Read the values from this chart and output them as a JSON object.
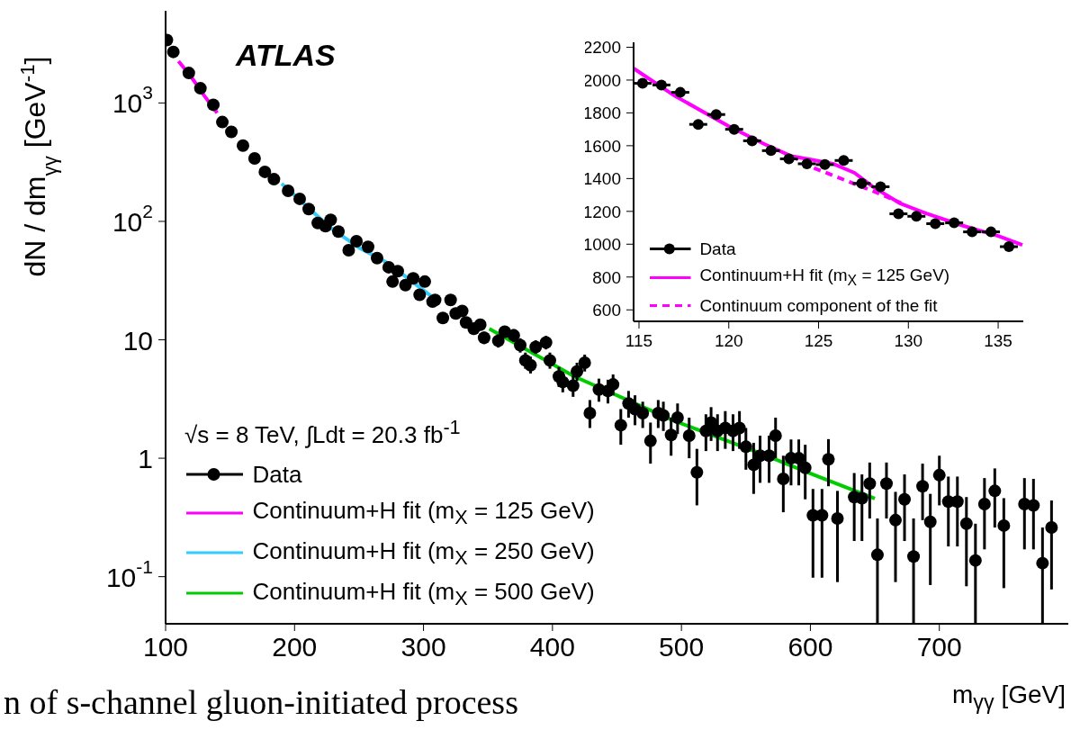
{
  "chart_data": [
    {
      "type": "scatter",
      "xlabel": "m$_{γγ}$ [GeV]",
      "ylabel": "dN / dm$_{γγ}$ [GeV$^{-1}$]",
      "annotations": [
        "ATLAS",
        "√s = 8 TeV, ∫Ldt = 20.3 fb$^{-1}$",
        "n of s-channel gluon-initiated process"
      ],
      "log": "y",
      "xlim": [
        100,
        800
      ],
      "ylim": [
        0.04,
        6000
      ],
      "xticks": [
        100,
        200,
        300,
        400,
        500,
        600,
        700
      ],
      "yticks": [
        {
          "value": 0.1,
          "label": "10$^{-1}$"
        },
        1,
        10,
        {
          "value": 100,
          "label": "10$^{2}$"
        },
        {
          "value": 1000,
          "label": "10$^{3}$"
        }
      ],
      "legend": "bottom left",
      "series": [
        {
          "name": "Data",
          "marker": "circle",
          "color": "#000000",
          "x": [
            101,
            106,
            118,
            127,
            137,
            144,
            151,
            160,
            169,
            177,
            184,
            195,
            204,
            211,
            218,
            224,
            228,
            234,
            242,
            248,
            257,
            264,
            273,
            276,
            280,
            286,
            292,
            297,
            301,
            307,
            309,
            315,
            321,
            325,
            330,
            333,
            339,
            344,
            347,
            358,
            363,
            370,
            375,
            379,
            383,
            387,
            395,
            398,
            405,
            408,
            416,
            419,
            425,
            429,
            436,
            443,
            447,
            453,
            459,
            464,
            470,
            476,
            482,
            486,
            492,
            497,
            506,
            512,
            519,
            523,
            528,
            534,
            540,
            545,
            550,
            556,
            561,
            568,
            573,
            579,
            585,
            591,
            596,
            602,
            609,
            614,
            621,
            634,
            640,
            646,
            652,
            659,
            666,
            673,
            680,
            687,
            693,
            700,
            707,
            714,
            721,
            728,
            735,
            743,
            750,
            766,
            773,
            780,
            787
          ],
          "values": [
            3400,
            2700,
            1790,
            1330,
            965,
            690,
            570,
            437,
            340,
            262,
            227,
            181,
            155,
            127,
            97,
            91,
            103,
            82,
            57,
            68,
            61,
            49,
            41,
            31,
            38,
            29,
            33,
            24,
            31,
            21,
            21.7,
            15.3,
            21.7,
            16.7,
            17.5,
            14,
            12.4,
            13.4,
            10.4,
            9.8,
            11.7,
            10.9,
            9.0,
            6.7,
            6.1,
            8.7,
            9.5,
            6.7,
            4.9,
            4.4,
            4.1,
            5.4,
            6.4,
            2.4,
            3.8,
            3.7,
            4.2,
            1.9,
            2.9,
            2.6,
            2.4,
            1.4,
            2.4,
            2.3,
            1.57,
            2.2,
            1.55,
            0.76,
            1.7,
            2.0,
            1.7,
            1.8,
            1.7,
            1.8,
            1.25,
            0.88,
            1.05,
            1.05,
            1.55,
            0.67,
            1.0,
            1.0,
            0.83,
            0.33,
            0.33,
            0.98,
            0.31,
            0.47,
            0.46,
            0.61,
            0.153,
            0.61,
            0.3,
            0.45,
            0.148,
            0.58,
            0.29,
            0.72,
            0.43,
            0.43,
            0.28,
            0.137,
            0.41,
            0.53,
            0.27,
            0.41,
            0.4,
            0.13,
            0.26
          ],
          "errors": [
            null,
            null,
            null,
            null,
            null,
            null,
            null,
            null,
            null,
            null,
            null,
            null,
            null,
            null,
            null,
            null,
            null,
            null,
            null,
            null,
            null,
            null,
            null,
            null,
            null,
            null,
            null,
            null,
            null,
            null,
            null,
            null,
            null,
            null,
            null,
            null,
            [
              11,
              14
            ],
            [
              12,
              15
            ],
            [
              9.2,
              11.7
            ],
            [
              8.6,
              11.1
            ],
            [
              10.4,
              13.1
            ],
            [
              9.6,
              12.3
            ],
            [
              7.8,
              10.3
            ],
            [
              5.7,
              7.8
            ],
            [
              5.2,
              7.2
            ],
            [
              7.6,
              9.9
            ],
            [
              8.3,
              10.8
            ],
            [
              5.7,
              7.8
            ],
            [
              4.0,
              5.9
            ],
            [
              3.6,
              5.3
            ],
            [
              3.3,
              5.0
            ],
            [
              4.5,
              6.4
            ],
            [
              5.4,
              7.5
            ],
            [
              1.8,
              3.1
            ],
            [
              3.0,
              4.7
            ],
            [
              2.9,
              4.6
            ],
            [
              3.4,
              5.1
            ],
            [
              1.3,
              2.6
            ],
            [
              2.2,
              3.7
            ],
            [
              1.9,
              3.4
            ],
            [
              1.8,
              3.0
            ],
            [
              0.9,
              2.0
            ],
            [
              1.8,
              3.1
            ],
            [
              1.7,
              3.0
            ],
            [
              1.05,
              2.2
            ],
            [
              1.6,
              2.9
            ],
            [
              1.0,
              2.2
            ],
            [
              0.4,
              1.2
            ],
            [
              1.15,
              2.35
            ],
            [
              1.4,
              2.7
            ],
            [
              1.15,
              2.35
            ],
            [
              1.2,
              2.5
            ],
            [
              1.15,
              2.35
            ],
            [
              1.2,
              2.5
            ],
            [
              0.8,
              1.8
            ],
            [
              0.5,
              1.35
            ],
            [
              0.62,
              1.55
            ],
            [
              0.62,
              1.55
            ],
            [
              1.0,
              2.2
            ],
            [
              0.35,
              1.05
            ],
            [
              0.59,
              1.44
            ],
            [
              0.59,
              1.44
            ],
            [
              0.45,
              1.3
            ],
            [
              0.098,
              0.55
            ],
            [
              0.098,
              0.55
            ],
            [
              0.58,
              1.45
            ],
            [
              0.09,
              0.53
            ],
            [
              0.2,
              0.75
            ],
            [
              0.2,
              0.73
            ],
            [
              0.31,
              0.92
            ],
            [
              0.04,
              0.31
            ],
            [
              0.31,
              0.92
            ],
            [
              0.09,
              0.52
            ],
            [
              0.2,
              0.73
            ],
            [
              0.04,
              0.31
            ],
            [
              0.3,
              0.9
            ],
            [
              0.085,
              0.5
            ],
            [
              0.4,
              1.05
            ],
            [
              0.18,
              0.7
            ],
            [
              0.18,
              0.7
            ],
            [
              0.083,
              0.47
            ],
            [
              0.04,
              0.28
            ],
            [
              0.17,
              0.68
            ],
            [
              0.26,
              0.82
            ],
            [
              0.08,
              0.46
            ],
            [
              0.17,
              0.68
            ],
            [
              0.17,
              0.67
            ],
            [
              0.04,
              0.26
            ],
            [
              0.078,
              0.44
            ]
          ]
        },
        {
          "name": "Continuum+H fit (m$_{X}$ = 125 GeV)",
          "type": "line",
          "color": "#ff00ff",
          "x": [
            110,
            120,
            130,
            140
          ],
          "values": [
            2250,
            1650,
            1150,
            824
          ]
        },
        {
          "name": "Continuum+H fit (m$_{X}$ = 250 GeV)",
          "type": "line",
          "color": "#33ccff",
          "x": [
            190,
            228,
            250,
            273,
            309
          ],
          "values": [
            208,
            88,
            60,
            44,
            22
          ]
        },
        {
          "name": "Continuum+H fit (m$_{X}$ = 500 GeV)",
          "type": "line",
          "color": "#00cc00",
          "x": [
            351,
            417,
            493,
            563,
            602,
            650
          ],
          "values": [
            12.4,
            4.9,
            2.1,
            1.08,
            0.73,
            0.456
          ]
        }
      ]
    },
    {
      "type": "scatter",
      "xlim": [
        114.7,
        136.4
      ],
      "ylim": [
        530,
        2230
      ],
      "xticks": [
        115,
        120,
        125,
        130,
        135
      ],
      "yticks": [
        600,
        800,
        1000,
        1200,
        1400,
        1600,
        1800,
        2000,
        2200
      ],
      "legend": "bottom left",
      "series": [
        {
          "name": "Data",
          "marker": "circle",
          "color": "#000000",
          "x": [
            115.2,
            116.25,
            117.3,
            118.3,
            119.3,
            120.3,
            121.3,
            122.35,
            123.35,
            124.35,
            125.35,
            126.4,
            127.4,
            128.45,
            129.45,
            130.45,
            131.5,
            132.55,
            133.55,
            134.6,
            135.6
          ],
          "values": [
            1980,
            1970,
            1925,
            1730,
            1790,
            1700,
            1630,
            1570,
            1520,
            1490,
            1485,
            1510,
            1370,
            1350,
            1185,
            1170,
            1125,
            1130,
            1075,
            1075,
            985
          ],
          "xerrors": [
            0.5,
            0.5,
            0.5,
            0.5,
            0.5,
            0.5,
            0.5,
            0.5,
            0.5,
            0.5,
            0.5,
            0.5,
            0.5,
            0.5,
            0.5,
            0.5,
            0.5,
            0.5,
            0.5,
            0.5,
            0.5
          ]
        },
        {
          "name": "Continuum+H fit (m$_{X}$ = 125 GeV)",
          "type": "line",
          "color": "#ff00ff",
          "line_style": "solid",
          "x": [
            114.7,
            117,
            120,
            122,
            123.5,
            124.5,
            125.8,
            127,
            128,
            129.5,
            131,
            133,
            135,
            136.35
          ],
          "values": [
            2071,
            1903,
            1719,
            1609,
            1536,
            1517,
            1490,
            1435,
            1352,
            1251,
            1187,
            1114,
            1050,
            995
          ]
        },
        {
          "name": "Continuum component of the fit",
          "type": "line",
          "color": "#ff00ff",
          "line_style": "dashed",
          "x": [
            123.5,
            124.8,
            126.5,
            128.2,
            129.6
          ],
          "values": [
            1536,
            1462,
            1389,
            1316,
            1251
          ]
        }
      ]
    }
  ]
}
